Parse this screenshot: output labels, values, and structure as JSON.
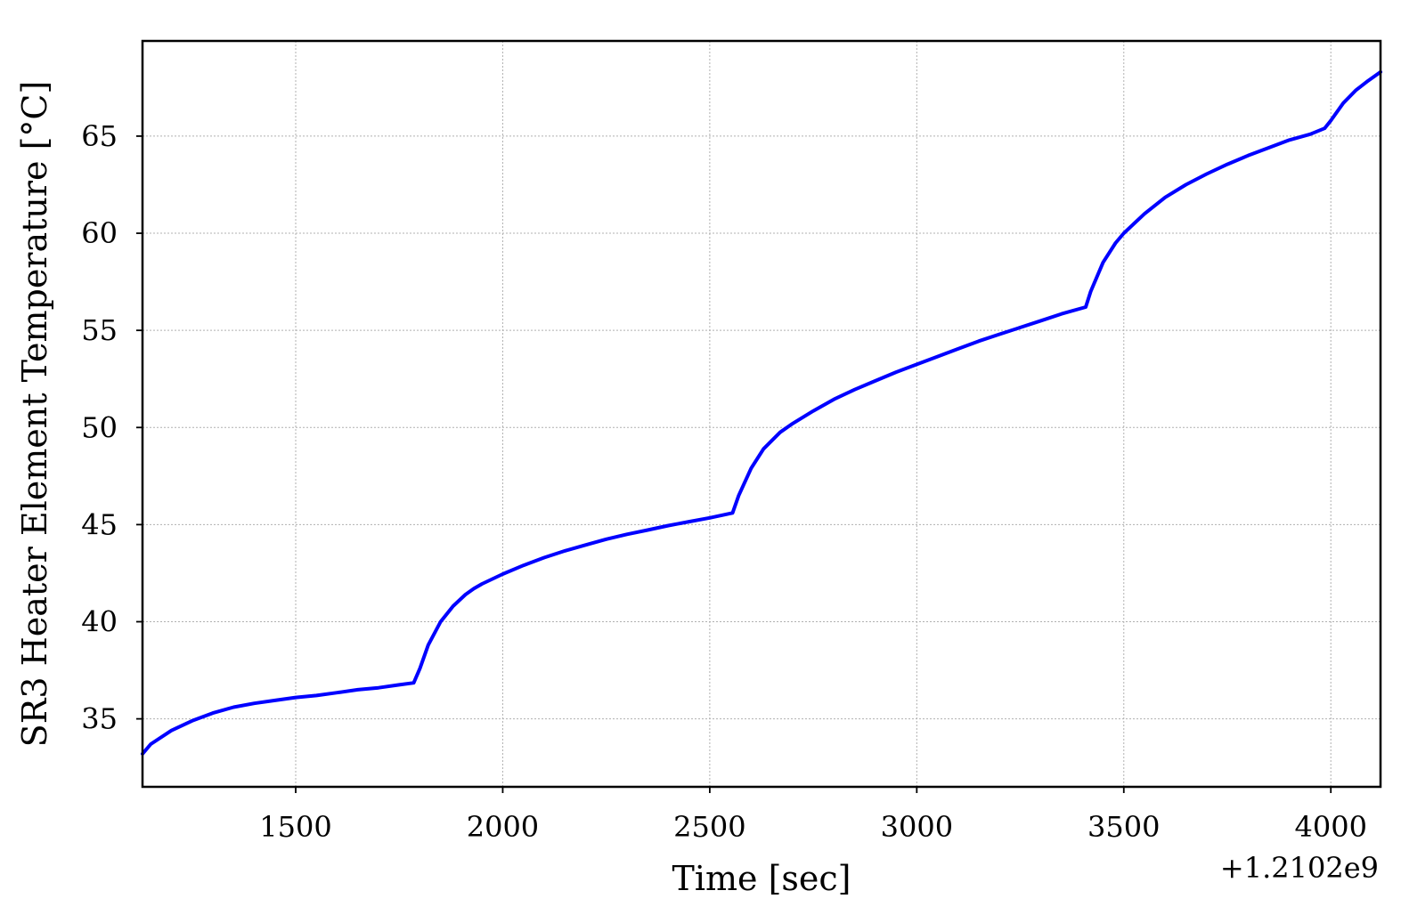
{
  "chart_data": {
    "type": "line",
    "title": "",
    "xlabel": "Time [sec]",
    "ylabel": "SR3 Heater Element Temperature [°C]",
    "x_offset_label": "+1.2102e9",
    "xlim": [
      1130,
      4120
    ],
    "ylim": [
      31.5,
      69.9
    ],
    "xticks": [
      1500,
      2000,
      2500,
      3000,
      3500,
      4000
    ],
    "yticks": [
      35,
      40,
      45,
      50,
      55,
      60,
      65
    ],
    "grid": true,
    "legend": "none",
    "series": [
      {
        "color": "#0000ff",
        "x": [
          1130,
          1150,
          1200,
          1250,
          1300,
          1350,
          1400,
          1450,
          1500,
          1550,
          1600,
          1650,
          1700,
          1750,
          1785,
          1800,
          1820,
          1850,
          1880,
          1910,
          1930,
          1950,
          2000,
          2050,
          2100,
          2150,
          2200,
          2250,
          2300,
          2350,
          2400,
          2450,
          2500,
          2555,
          2570,
          2600,
          2630,
          2670,
          2700,
          2750,
          2800,
          2850,
          2900,
          2950,
          3000,
          3050,
          3100,
          3150,
          3200,
          3250,
          3300,
          3350,
          3408,
          3420,
          3450,
          3480,
          3500,
          3550,
          3600,
          3650,
          3700,
          3750,
          3800,
          3850,
          3900,
          3950,
          3985,
          4000,
          4030,
          4060,
          4090,
          4120
        ],
        "y": [
          33.2,
          33.7,
          34.4,
          34.9,
          35.3,
          35.6,
          35.8,
          35.95,
          36.1,
          36.2,
          36.35,
          36.5,
          36.6,
          36.75,
          36.85,
          37.6,
          38.8,
          40.0,
          40.8,
          41.4,
          41.7,
          41.95,
          42.45,
          42.9,
          43.3,
          43.65,
          43.95,
          44.25,
          44.5,
          44.72,
          44.95,
          45.15,
          45.35,
          45.6,
          46.5,
          47.9,
          48.9,
          49.75,
          50.2,
          50.85,
          51.45,
          51.95,
          52.4,
          52.85,
          53.25,
          53.65,
          54.05,
          54.45,
          54.8,
          55.15,
          55.5,
          55.85,
          56.2,
          57.0,
          58.5,
          59.5,
          60.0,
          61.0,
          61.85,
          62.5,
          63.05,
          63.55,
          64.0,
          64.4,
          64.8,
          65.1,
          65.4,
          65.8,
          66.7,
          67.35,
          67.85,
          68.3
        ]
      }
    ]
  }
}
